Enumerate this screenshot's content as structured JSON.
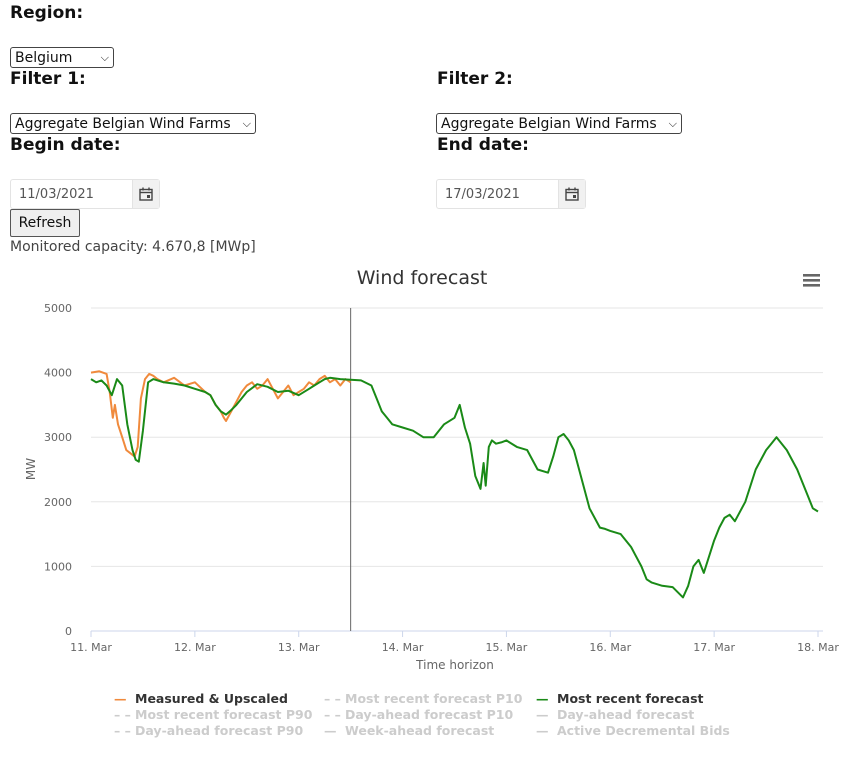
{
  "filters": {
    "region_label": "Region:",
    "region_value": "Belgium",
    "filter1_label": "Filter 1:",
    "filter1_value": "Aggregate Belgian Wind Farms",
    "filter2_label": "Filter 2:",
    "filter2_value": "Aggregate Belgian Wind Farms",
    "begin_label": "Begin date:",
    "begin_value": "11/03/2021",
    "end_label": "End date:",
    "end_value": "17/03/2021",
    "refresh_label": "Refresh",
    "capacity_text": "Monitored capacity: 4.670,8 [MWp]"
  },
  "chart_data": {
    "type": "line",
    "title": "Wind forecast",
    "xlabel": "Time horizon",
    "ylabel": "MW",
    "ylim": [
      0,
      5000
    ],
    "yticks": [
      0,
      1000,
      2000,
      3000,
      4000,
      5000
    ],
    "xticks": [
      "11. Mar",
      "12. Mar",
      "13. Mar",
      "14. Mar",
      "15. Mar",
      "16. Mar",
      "17. Mar",
      "18. Mar"
    ],
    "xlim_days": [
      11,
      18
    ],
    "now_marker_day": 13.5,
    "grid": true,
    "legend_position": "bottom",
    "colors": {
      "measured": "#f08a3c",
      "recent": "#1a8a17",
      "inactive": "#cccccc"
    },
    "series": [
      {
        "name": "Measured & Upscaled",
        "x": [
          11.0,
          11.08,
          11.15,
          11.18,
          11.21,
          11.23,
          11.26,
          11.3,
          11.34,
          11.38,
          11.42,
          11.45,
          11.48,
          11.52,
          11.56,
          11.6,
          11.64,
          11.7,
          11.8,
          11.9,
          12.0,
          12.1,
          12.15,
          12.2,
          12.25,
          12.28,
          12.3,
          12.35,
          12.4,
          12.45,
          12.5,
          12.55,
          12.6,
          12.65,
          12.7,
          12.75,
          12.8,
          12.85,
          12.9,
          12.95,
          13.0,
          13.05,
          13.1,
          13.15,
          13.2,
          13.25,
          13.3,
          13.35,
          13.4,
          13.45,
          13.5
        ],
        "y": [
          4000,
          4020,
          3980,
          3700,
          3300,
          3500,
          3200,
          3000,
          2800,
          2750,
          2700,
          2850,
          3600,
          3900,
          3980,
          3950,
          3900,
          3850,
          3920,
          3800,
          3850,
          3700,
          3650,
          3500,
          3400,
          3300,
          3250,
          3400,
          3550,
          3700,
          3800,
          3850,
          3750,
          3800,
          3900,
          3750,
          3600,
          3700,
          3800,
          3650,
          3700,
          3750,
          3850,
          3800,
          3900,
          3950,
          3850,
          3900,
          3800,
          3900,
          3850
        ]
      },
      {
        "name": "Most recent forecast",
        "x": [
          11.0,
          11.05,
          11.1,
          11.15,
          11.2,
          11.25,
          11.3,
          11.35,
          11.4,
          11.43,
          11.46,
          11.5,
          11.55,
          11.6,
          11.7,
          11.8,
          11.9,
          12.0,
          12.1,
          12.15,
          12.2,
          12.25,
          12.3,
          12.35,
          12.4,
          12.5,
          12.6,
          12.7,
          12.8,
          12.9,
          13.0,
          13.1,
          13.15,
          13.2,
          13.25,
          13.3,
          13.4,
          13.5,
          13.6,
          13.7,
          13.75,
          13.8,
          13.85,
          13.9,
          14.0,
          14.1,
          14.2,
          14.3,
          14.4,
          14.5,
          14.55,
          14.6,
          14.65,
          14.7,
          14.75,
          14.78,
          14.8,
          14.83,
          14.86,
          14.9,
          14.95,
          15.0,
          15.1,
          15.2,
          15.3,
          15.4,
          15.45,
          15.5,
          15.55,
          15.6,
          15.65,
          15.7,
          15.8,
          15.9,
          15.95,
          16.0,
          16.1,
          16.2,
          16.3,
          16.35,
          16.4,
          16.5,
          16.6,
          16.7,
          16.75,
          16.8,
          16.85,
          16.9,
          17.0,
          17.05,
          17.1,
          17.15,
          17.2,
          17.3,
          17.4,
          17.5,
          17.55,
          17.6,
          17.7,
          17.8,
          17.85,
          17.9,
          17.95,
          18.0
        ],
        "y": [
          3900,
          3850,
          3880,
          3800,
          3650,
          3900,
          3800,
          3200,
          2800,
          2650,
          2620,
          3100,
          3850,
          3900,
          3850,
          3830,
          3800,
          3750,
          3700,
          3650,
          3500,
          3400,
          3350,
          3420,
          3500,
          3700,
          3820,
          3780,
          3700,
          3720,
          3650,
          3750,
          3800,
          3850,
          3900,
          3920,
          3900,
          3890,
          3880,
          3800,
          3600,
          3400,
          3300,
          3200,
          3150,
          3100,
          3000,
          3000,
          3200,
          3300,
          3500,
          3150,
          2900,
          2400,
          2200,
          2600,
          2250,
          2850,
          2950,
          2900,
          2920,
          2950,
          2850,
          2800,
          2500,
          2450,
          2700,
          3000,
          3050,
          2950,
          2800,
          2500,
          1900,
          1600,
          1580,
          1550,
          1500,
          1300,
          1000,
          800,
          750,
          700,
          680,
          520,
          700,
          1000,
          1100,
          900,
          1400,
          1600,
          1750,
          1800,
          1700,
          2000,
          2500,
          2800,
          2900,
          3000,
          2800,
          2500,
          2300,
          2100,
          1900,
          1850
        ]
      }
    ],
    "legend": [
      {
        "name": "Measured & Upscaled",
        "style": "solid",
        "active": true,
        "color_key": "measured"
      },
      {
        "name": "Most recent forecast P10",
        "style": "dashed",
        "active": false,
        "color_key": "inactive"
      },
      {
        "name": "Most recent forecast",
        "style": "solid",
        "active": true,
        "color_key": "recent"
      },
      {
        "name": "Most recent forecast P90",
        "style": "dashed",
        "active": false,
        "color_key": "inactive"
      },
      {
        "name": "Day-ahead forecast P10",
        "style": "dashed",
        "active": false,
        "color_key": "inactive"
      },
      {
        "name": "Day-ahead forecast",
        "style": "solid",
        "active": false,
        "color_key": "inactive"
      },
      {
        "name": "Day-ahead forecast P90",
        "style": "dashed",
        "active": false,
        "color_key": "inactive"
      },
      {
        "name": "Week-ahead forecast",
        "style": "solid",
        "active": false,
        "color_key": "inactive"
      },
      {
        "name": "Active Decremental Bids",
        "style": "solid",
        "active": false,
        "color_key": "inactive"
      }
    ]
  }
}
